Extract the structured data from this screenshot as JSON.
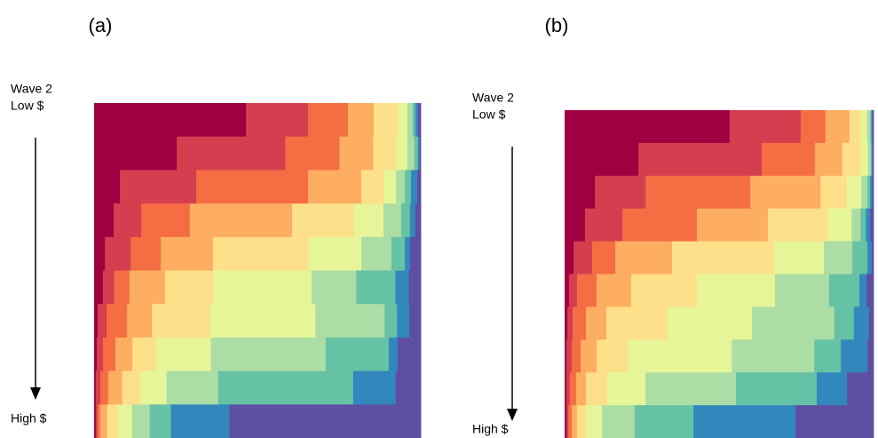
{
  "chart_data": [
    {
      "type": "stacked_row_bar",
      "title": "(a)",
      "label_top": [
        "Wave 2",
        "Low $"
      ],
      "label_bottom": "High $",
      "xlim": [
        0,
        100
      ],
      "colors": [
        "#9e0142",
        "#d53e4f",
        "#f46d43",
        "#fdae61",
        "#fee08b",
        "#e6f598",
        "#abdda4",
        "#66c2a5",
        "#3288bd",
        "#5e4fa2"
      ],
      "rows": [
        [
          46.5,
          19,
          12.2,
          7.9,
          7.6,
          2.7,
          1.6,
          0.8,
          0.8,
          0.9
        ],
        [
          25.3,
          33.2,
          16.6,
          10.3,
          7.1,
          3.3,
          2.2,
          1.1,
          0.5,
          0.4
        ],
        [
          7.9,
          23.4,
          34.2,
          16.3,
          6.8,
          3.8,
          2.7,
          1.9,
          1.9,
          1.1
        ],
        [
          6,
          8.4,
          14.9,
          31.3,
          19,
          9,
          5.4,
          2.7,
          1.6,
          1.7
        ],
        [
          3.3,
          7.9,
          9.2,
          16,
          29.1,
          16.3,
          9.2,
          4.1,
          1.6,
          3.3
        ],
        [
          2.7,
          3.5,
          4.6,
          10.9,
          14.7,
          30.2,
          13.6,
          12,
          4.1,
          3.7
        ],
        [
          1.1,
          2.7,
          6.3,
          7.6,
          17.9,
          32.1,
          21.2,
          3.8,
          3.8,
          3.5
        ],
        [
          0.8,
          1.9,
          3.8,
          5.2,
          7.3,
          16.8,
          35.1,
          19.3,
          2.7,
          7.1
        ],
        [
          0.5,
          1.4,
          2.4,
          4.3,
          5.4,
          8.2,
          15.8,
          41.3,
          13,
          7.7
        ],
        [
          0.5,
          0.5,
          0.8,
          2.2,
          3.3,
          4.3,
          5.4,
          6.5,
          17.9,
          58.6
        ]
      ]
    },
    {
      "type": "stacked_row_bar",
      "title": "(b)",
      "label_top": [
        "Wave 2",
        "Low $"
      ],
      "label_bottom": "High $",
      "xlim": [
        0,
        100
      ],
      "colors": [
        "#9e0142",
        "#d53e4f",
        "#f46d43",
        "#fdae61",
        "#fee08b",
        "#e6f598",
        "#abdda4",
        "#66c2a5",
        "#3288bd",
        "#5e4fa2"
      ],
      "rows": [
        [
          53.4,
          23,
          8,
          7.8,
          3.7,
          2,
          1.1,
          0.3,
          0.3,
          0.4
        ],
        [
          23.9,
          39.9,
          17.2,
          8.9,
          6,
          2.3,
          0.9,
          0.3,
          0.3,
          0.3
        ],
        [
          9.8,
          16.4,
          33.9,
          22.7,
          8.6,
          4.6,
          2,
          0.9,
          0.6,
          0.5
        ],
        [
          6.6,
          12.1,
          24.1,
          23,
          19.3,
          7.8,
          2.9,
          1.7,
          1.4,
          1.1
        ],
        [
          2.9,
          6,
          7.5,
          18.4,
          33,
          16.1,
          9.2,
          4.9,
          1.4,
          0.6
        ],
        [
          1.4,
          2.6,
          6.3,
          11.2,
          21.3,
          25.3,
          17.5,
          9.8,
          2.3,
          2.3
        ],
        [
          0.9,
          1.7,
          4.3,
          6.6,
          19.8,
          27.3,
          26.7,
          6.3,
          4.9,
          1.5
        ],
        [
          0.6,
          1.7,
          2.9,
          5.2,
          10.1,
          33.6,
          26.7,
          8.6,
          8.6,
          2
        ],
        [
          0.6,
          1.1,
          2,
          3.2,
          6.9,
          12.4,
          29.3,
          26.1,
          9.8,
          8.6
        ],
        [
          0.6,
          0.6,
          1.1,
          1.7,
          2.9,
          5.2,
          10.6,
          19,
          33,
          25.3
        ]
      ]
    }
  ]
}
